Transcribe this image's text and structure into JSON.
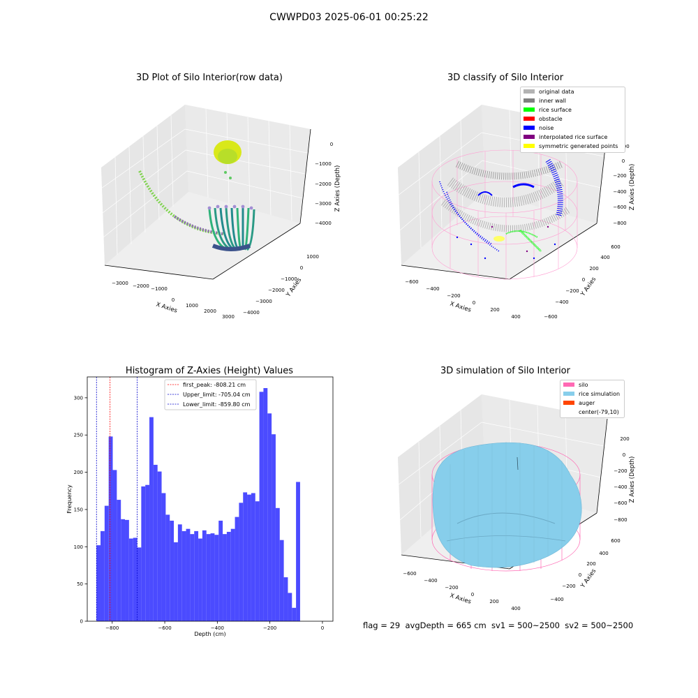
{
  "suptitle": "CWWPD03 2025-06-01 00:25:22",
  "footer": "flag = 29  avgDepth = 665 cm  sv1 = 500~2500  sv2 = 500~2500",
  "colors": {
    "hist_bar": "#4b4bff",
    "first_peak": "#ff0000",
    "limit": "#0000cc",
    "silo": "#ff69b4",
    "rice": "#87ceeb",
    "auger": "#ff4500",
    "original": "#b3b3b3",
    "inner_wall": "#808080",
    "rice_surface": "#00ff00",
    "obstacle": "#ff0000",
    "noise": "#0000ff",
    "interp": "#800080",
    "symmetric": "#ffff00"
  },
  "chart_data": [
    {
      "type": "scatter",
      "title": "3D Plot of Silo Interior(row data)",
      "xlabel": "X Axies",
      "ylabel": "Y Axies",
      "zlabel": "Z Axies (Depth)",
      "x_ticks": [
        "−3000",
        "−2000",
        "−1000",
        "0",
        "1000",
        "2000",
        "3000"
      ],
      "y_ticks": [
        "1000",
        "0",
        "−1000",
        "−2000",
        "−3000",
        "−4000"
      ],
      "z_ticks": [
        "0",
        "−1000",
        "−2000",
        "−3000",
        "−4000"
      ]
    },
    {
      "type": "scatter",
      "title": "3D classify of Silo Interior",
      "xlabel": "X Axies",
      "ylabel": "Y Axies",
      "zlabel": "Z Axies (Depth)",
      "legend_position": "top-right",
      "legend": [
        "original data",
        "inner wall",
        "rice surface",
        "obstacle",
        "noise",
        "interpolated rice surface",
        "symmetric generated points"
      ],
      "x_ticks": [
        "−600",
        "−400",
        "−200",
        "0",
        "200",
        "400"
      ],
      "y_ticks": [
        "600",
        "400",
        "200",
        "0",
        "−200",
        "−400",
        "−600"
      ],
      "z_ticks": [
        "200",
        "0",
        "−200",
        "−400",
        "−600",
        "−800"
      ]
    },
    {
      "type": "bar",
      "title": "Histogram of Z-Axies (Height) Values",
      "xlabel": "Depth (cm)",
      "ylabel": "Frequency",
      "xlim": [
        -895,
        40
      ],
      "ylim": [
        0,
        328
      ],
      "grid": false,
      "legend_position": "top-center",
      "bin_start": -860,
      "bin_width": 15.5,
      "values": [
        102,
        121,
        155,
        248,
        203,
        163,
        137,
        136,
        111,
        112,
        99,
        181,
        183,
        274,
        210,
        201,
        172,
        143,
        135,
        106,
        130,
        121,
        124,
        117,
        121,
        111,
        122,
        117,
        118,
        116,
        135,
        117,
        120,
        124,
        140,
        159,
        173,
        170,
        172,
        161,
        308,
        313,
        279,
        251,
        152,
        109,
        59,
        38,
        18,
        187
      ],
      "x_ticks": [
        -800,
        -600,
        -400,
        -200,
        0
      ],
      "x_tick_labels": [
        "−800",
        "−600",
        "−400",
        "−200",
        "0"
      ],
      "y_ticks": [
        0,
        50,
        100,
        150,
        200,
        250,
        300
      ],
      "y_tick_labels": [
        "0",
        "50",
        "100",
        "150",
        "200",
        "250",
        "300"
      ],
      "vlines": [
        {
          "label": "first_peak: -808.21 cm",
          "x": -808.21,
          "color": "#ff0000"
        },
        {
          "label": "Upper_limit: -705.04 cm",
          "x": -705.04,
          "color": "#0000cc"
        },
        {
          "label": "Lower_limit: -859.80 cm",
          "x": -859.8,
          "color": "#0000cc"
        }
      ]
    },
    {
      "type": "area",
      "title": "3D simulation of Silo Interior",
      "xlabel": "X Axies",
      "ylabel": "Y Axies",
      "zlabel": "Z Axies (Depth)",
      "legend_position": "top-right",
      "legend": [
        "silo",
        "rice simulation",
        "auger",
        "center(-79,10)"
      ],
      "x_ticks": [
        "−600",
        "−400",
        "−200",
        "0",
        "200",
        "400"
      ],
      "y_ticks": [
        "600",
        "400",
        "200",
        "0",
        "−200",
        "−400"
      ],
      "z_ticks": [
        "200",
        "0",
        "−200",
        "−400",
        "−600",
        "−800"
      ]
    }
  ]
}
